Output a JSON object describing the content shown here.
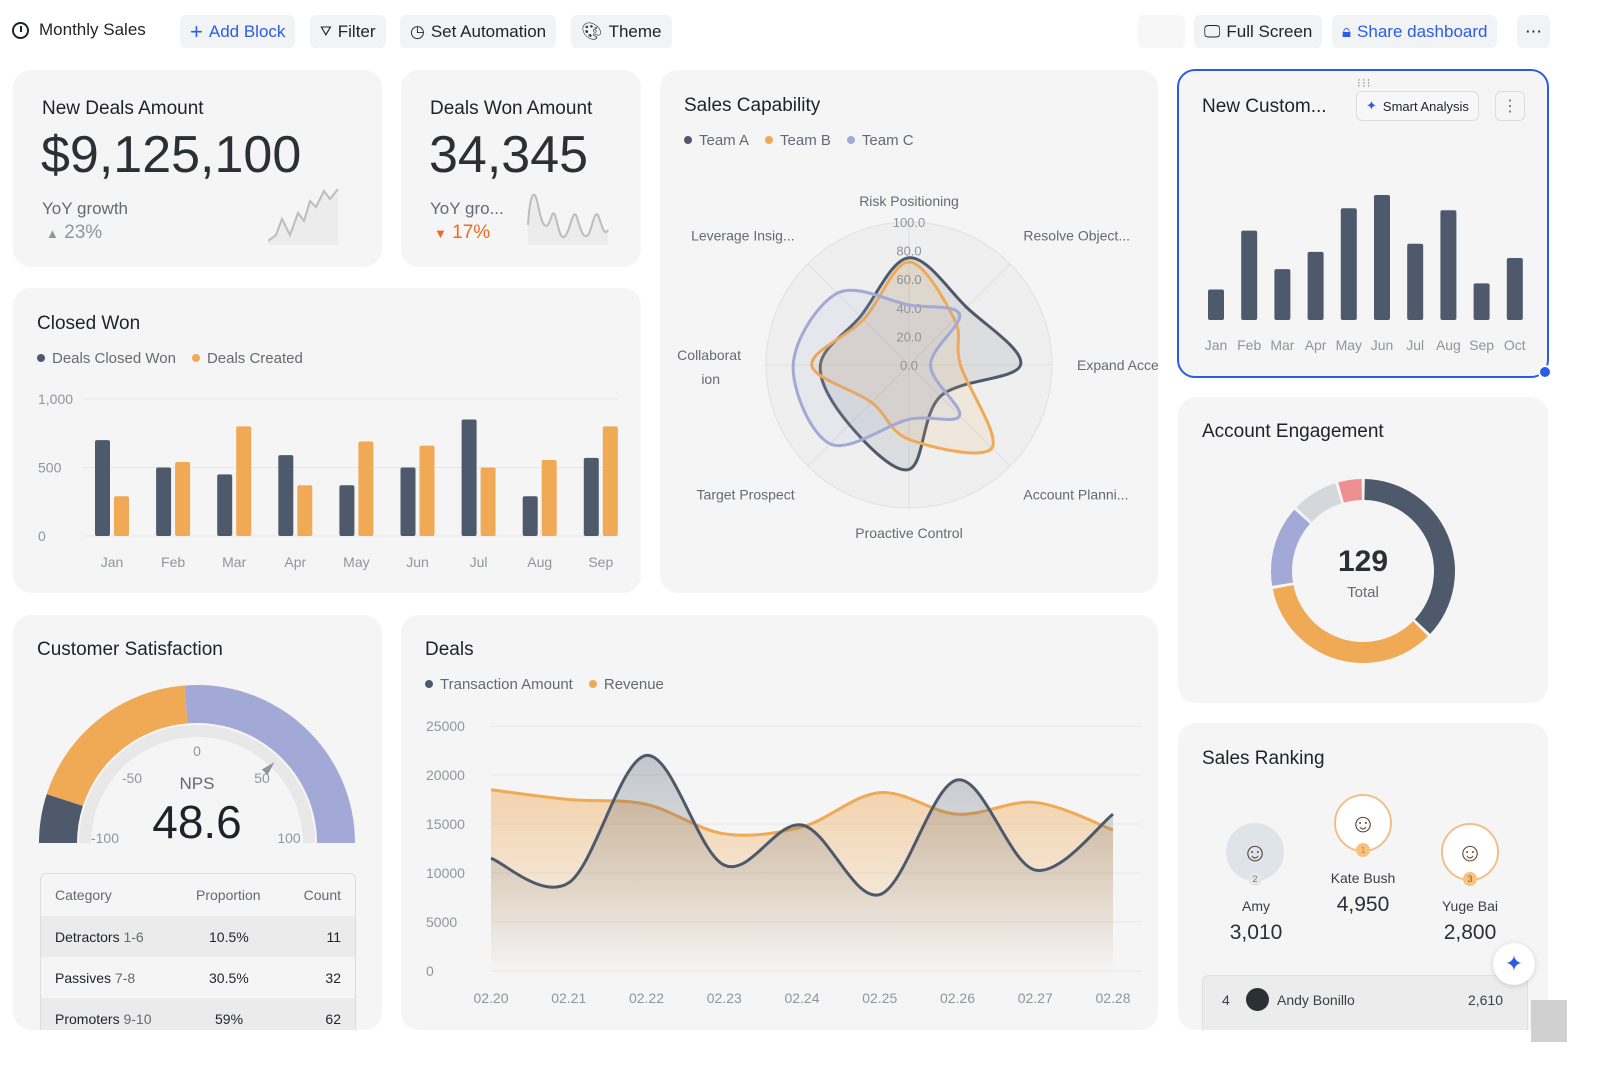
{
  "toolbar": {
    "title": "Monthly Sales",
    "add_block": "Add Block",
    "filter": "Filter",
    "automation": "Set Automation",
    "theme": "Theme",
    "fullscreen": "Full Screen",
    "share": "Share dashboard",
    "more": "⋯"
  },
  "colors": {
    "dark": "#4e5a6b",
    "orange": "#f0a955",
    "purple": "#a3a9d6",
    "gray": "#d4d7dc",
    "pink": "#ef9090",
    "accent": "#2b5ce6",
    "down": "#f06a26"
  },
  "kpi1": {
    "title": "New Deals Amount",
    "value": "$9,125,100",
    "growth_label": "YoY growth",
    "growth": "23%",
    "dir": "▲"
  },
  "kpi2": {
    "title": "Deals Won Amount",
    "value": "34,345",
    "growth_label": "YoY gro...",
    "growth": "17%",
    "dir": "▼"
  },
  "capability": {
    "title": "Sales Capability"
  },
  "newcust": {
    "title": "New Custom...",
    "smart": "Smart Analysis",
    "more": "⋮"
  },
  "closed": {
    "title": "Closed Won"
  },
  "engagement": {
    "title": "Account Engagement",
    "total": "129",
    "total_label": "Total"
  },
  "satisfaction": {
    "title": "Customer Satisfaction",
    "nps_label": "NPS",
    "nps": "48.6",
    "table": {
      "headers": [
        "Category",
        "Proportion",
        "Count"
      ],
      "rows": [
        [
          "Detractors",
          "1-6",
          "10.5%",
          "11"
        ],
        [
          "Passives",
          "7-8",
          "30.5%",
          "32"
        ],
        [
          "Promoters",
          "9-10",
          "59%",
          "62"
        ]
      ]
    }
  },
  "deals": {
    "title": "Deals"
  },
  "ranking": {
    "title": "Sales Ranking",
    "top": [
      {
        "rank": "2",
        "name": "Amy",
        "value": "3,010"
      },
      {
        "rank": "1",
        "name": "Kate Bush",
        "value": "4,950"
      },
      {
        "rank": "3",
        "name": "Yuge Bai",
        "value": "2,800"
      }
    ],
    "list": [
      {
        "rank": "4",
        "name": "Andy Bonillo",
        "value": "2,610"
      }
    ]
  },
  "chart_data": [
    {
      "id": "radar",
      "type": "radar",
      "title": "Sales Capability",
      "axes": [
        "Risk Positioning",
        "Resolve Object...",
        "Expand Access",
        "Account Planni...",
        "Proactive Control",
        "Target Prospect",
        "Collaboration",
        "Leverage Insig..."
      ],
      "rlim": [
        0,
        100
      ],
      "ticks": [
        "0.0",
        "20.0",
        "40.0",
        "60.0",
        "80.0",
        "100.0"
      ],
      "series": [
        {
          "name": "Team A",
          "values": [
            75,
            57,
            78,
            31,
            73,
            59,
            62,
            48
          ]
        },
        {
          "name": "Team B",
          "values": [
            72,
            45,
            36,
            82,
            52,
            37,
            68,
            45
          ]
        },
        {
          "name": "Team C",
          "values": [
            42,
            50,
            15,
            50,
            38,
            78,
            81,
            71
          ]
        }
      ]
    },
    {
      "id": "newcust",
      "type": "bar",
      "title": "New Custom...",
      "categories": [
        "Jan",
        "Feb",
        "Mar",
        "Apr",
        "May",
        "Jun",
        "Jul",
        "Aug",
        "Sep",
        "Oct"
      ],
      "values": [
        30,
        88,
        50,
        67,
        110,
        123,
        75,
        108,
        36,
        61
      ]
    },
    {
      "id": "closed",
      "type": "bar",
      "title": "Closed Won",
      "categories": [
        "Jan",
        "Feb",
        "Mar",
        "Apr",
        "May",
        "Jun",
        "Jul",
        "Aug",
        "Sep"
      ],
      "ylim": [
        0,
        1000
      ],
      "yticks": [
        "0",
        "500",
        "1,000"
      ],
      "series": [
        {
          "name": "Deals Closed Won",
          "values": [
            700,
            500,
            450,
            590,
            370,
            500,
            850,
            290,
            570
          ]
        },
        {
          "name": "Deals Created",
          "values": [
            290,
            540,
            800,
            370,
            690,
            660,
            500,
            555,
            800
          ]
        }
      ]
    },
    {
      "id": "engagement",
      "type": "pie",
      "total": 129,
      "values": [
        48,
        45,
        19,
        11,
        6
      ]
    },
    {
      "id": "nps",
      "type": "gauge",
      "value": 48.6,
      "range": [
        -100,
        100
      ],
      "ticks": [
        "-100",
        "-50",
        "0",
        "50",
        "100"
      ],
      "bands": [
        -100,
        -80,
        -5,
        100
      ]
    },
    {
      "id": "deals",
      "type": "area",
      "title": "Deals",
      "categories": [
        "02.20",
        "02.21",
        "02.22",
        "02.23",
        "02.24",
        "02.25",
        "02.26",
        "02.27",
        "02.28"
      ],
      "ylim": [
        0,
        25000
      ],
      "yticks": [
        "0",
        "5000",
        "10000",
        "15000",
        "20000",
        "25000"
      ],
      "series": [
        {
          "name": "Transaction Amount",
          "values": [
            11500,
            9000,
            22000,
            10800,
            14900,
            7800,
            19500,
            10300,
            16000
          ]
        },
        {
          "name": "Revenue",
          "values": [
            18500,
            17500,
            17000,
            14000,
            14700,
            18200,
            16000,
            17200,
            14400
          ]
        }
      ]
    }
  ]
}
